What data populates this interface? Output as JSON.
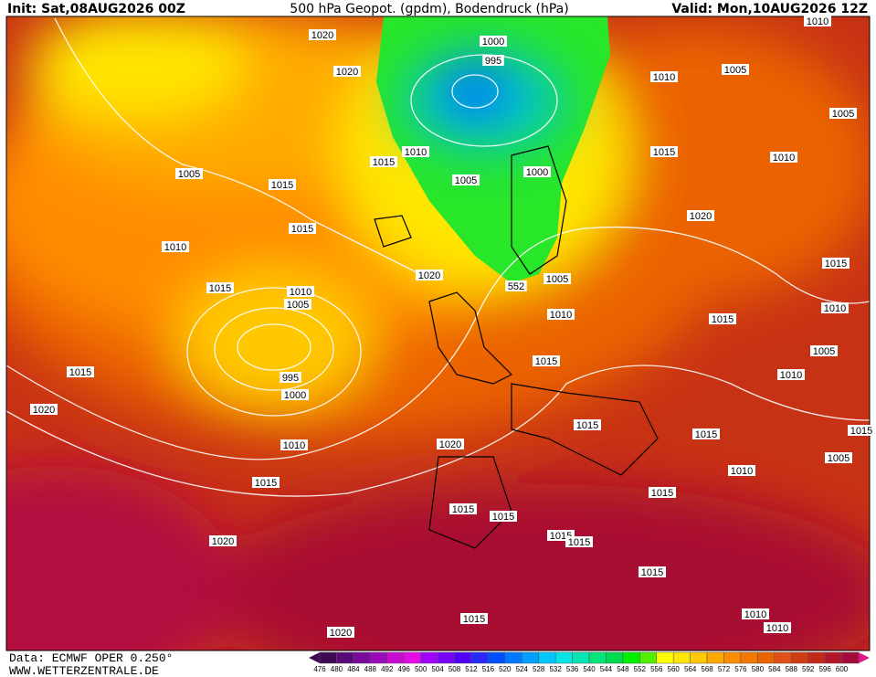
{
  "header": {
    "init": "Init: Sat,08AUG2026 00Z",
    "title": "500 hPa Geopot. (gpdm), Bodendruck (hPa)",
    "valid": "Valid: Mon,10AUG2026 12Z"
  },
  "isobar_labels": [
    1020,
    1020,
    1000,
    995,
    1010,
    1005,
    1010,
    1005,
    1010,
    1015,
    1005,
    1000,
    1015,
    1010,
    1005,
    1015,
    1015,
    1010,
    1020,
    1015,
    1010,
    1005,
    1020,
    552,
    1005,
    1010,
    1015,
    1010,
    1015,
    1005,
    1015,
    995,
    1000,
    1015,
    1010,
    1020,
    1015,
    1015,
    1015,
    1010,
    1020,
    1005,
    1015,
    1010,
    1015,
    1015,
    1015,
    1015,
    1015,
    1020,
    1015,
    1010,
    1010,
    1015,
    1020
  ],
  "legend": {
    "values": [
      476,
      480,
      484,
      488,
      492,
      496,
      500,
      504,
      508,
      512,
      516,
      520,
      524,
      528,
      532,
      536,
      540,
      544,
      548,
      552,
      556,
      560,
      564,
      568,
      572,
      576,
      580,
      584,
      588,
      592,
      596,
      600
    ],
    "colors": [
      "#3d0a52",
      "#5a0a78",
      "#7a0a9c",
      "#9a0ab8",
      "#c80ad2",
      "#e60ae6",
      "#a000ff",
      "#7800ff",
      "#5000ff",
      "#2828ff",
      "#0050ff",
      "#0078ff",
      "#00a0ff",
      "#00c8ff",
      "#00e6e6",
      "#00e6b4",
      "#00e678",
      "#00dc50",
      "#00f000",
      "#50f000",
      "#ffff00",
      "#ffe600",
      "#ffc800",
      "#ffaa00",
      "#ff8c00",
      "#f57800",
      "#eb6400",
      "#e15014",
      "#d23c14",
      "#c32814",
      "#b41428",
      "#a00a3c"
    ]
  },
  "footer": {
    "source": "Data: ECMWF OPER 0.250°",
    "site": "WWW.WETTERZENTRALE.DE"
  }
}
